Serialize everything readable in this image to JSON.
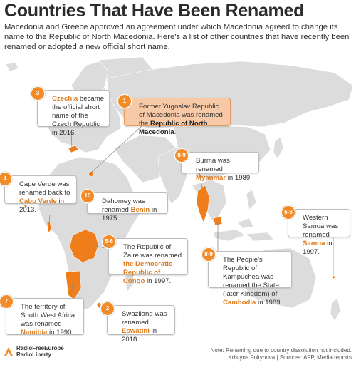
{
  "title": "Countries That Have Been Renamed",
  "subtitle": "Macedonia and Greece approved an agreement under which Macedonia agreed to change its name to the Republic of North Macedonia. Here's a list of other countries that have recently been renamed or adopted a new official short name.",
  "colors": {
    "accent": "#e07b20",
    "badge": "#f28c28",
    "land": "#dcdcdc",
    "highlight_land": "#ef7d1a",
    "featured_box": "#f7c9a6"
  },
  "callouts": {
    "north_macedonia": {
      "badge": "1",
      "text": "Former Yugoslav Republic of Macedonia was renamed the ",
      "name": "Republic of North Macedonia",
      "suffix": "."
    },
    "czechia": {
      "badge": "3",
      "name": "Czechia",
      "text": " became the official short name of the Czech Republic in 2016."
    },
    "cabo_verde": {
      "badge": "4",
      "text": "Cape Verde was renamed back to ",
      "name": "Cabo Verde",
      "suffix": " in 2013."
    },
    "benin": {
      "badge": "10",
      "text": "Dahomey was renamed ",
      "name": "Benin",
      "suffix": " in 1975."
    },
    "myanmar": {
      "badge": "8-9",
      "text": "Burma was renamed ",
      "name": "Myanmar",
      "suffix": " in 1989."
    },
    "samoa": {
      "badge": "5-6",
      "text": "Western Samoa was renamed ",
      "name": "Samoa",
      "suffix": " in 1997."
    },
    "drc": {
      "badge": "5-6",
      "text": "The Republic of Zaire was renamed ",
      "name": "the Democratic Republic of Congo",
      "suffix": " in 1997."
    },
    "cambodia": {
      "badge": "8-9",
      "text": "The People's Republic of Kampuchea was renamed the State (later Kingdom) of ",
      "name": "Cambodia",
      "suffix": " in 1989."
    },
    "namibia": {
      "badge": "7",
      "text": "The territory of South West Africa was renamed ",
      "name": "Namibia",
      "suffix": " in 1990."
    },
    "eswatini": {
      "badge": "2",
      "text": "Swaziland was renamed ",
      "name": "Eswatini",
      "suffix": " in 2018."
    }
  },
  "logo": {
    "line1": "RadioFreeEurope",
    "line2": "RadioLiberty"
  },
  "footer": {
    "note": "Note: Renaming due to country dissolution not included.",
    "credit": "Kristyna Foltynova | Sources: AFP, Media reports"
  }
}
